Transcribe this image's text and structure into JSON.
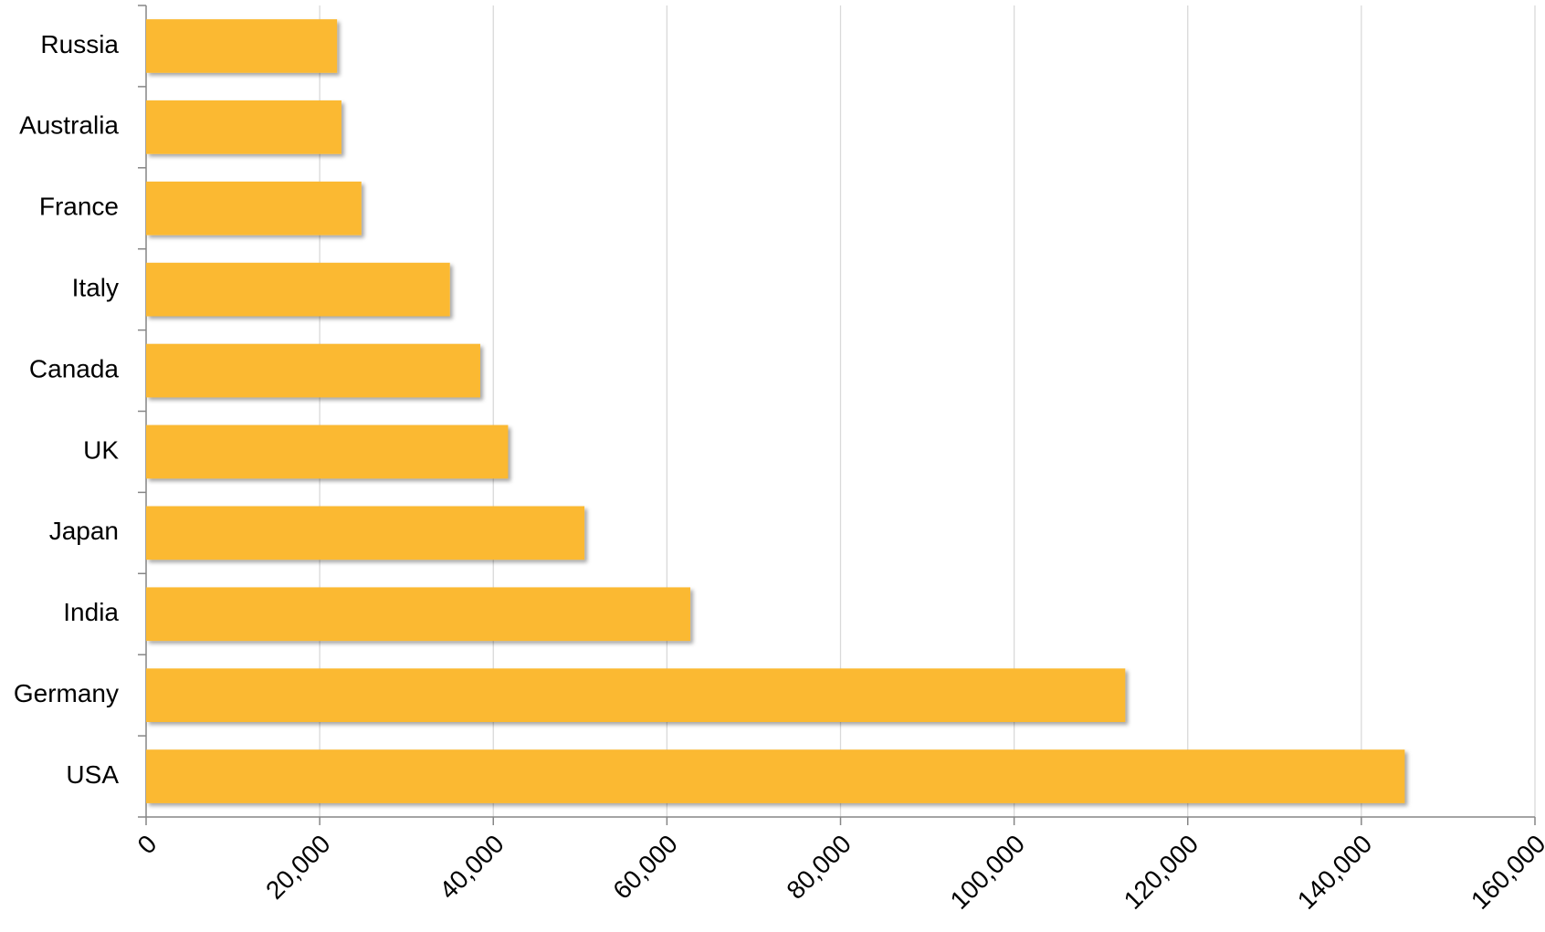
{
  "chart_data": {
    "type": "bar",
    "orientation": "horizontal",
    "categories": [
      "Russia",
      "Australia",
      "France",
      "Italy",
      "Canada",
      "UK",
      "Japan",
      "India",
      "Germany",
      "USA"
    ],
    "values": [
      22000,
      22500,
      24800,
      35000,
      38500,
      41700,
      50500,
      62700,
      112800,
      145000
    ],
    "color": "#fbb931",
    "xlim": [
      0,
      160000
    ],
    "xticks": [
      0,
      {
        "value": 20000,
        "label": "20,000"
      },
      {
        "value": 40000,
        "label": "40,000"
      },
      {
        "value": 60000,
        "label": "60,000"
      },
      {
        "value": 80000,
        "label": "80,000"
      },
      {
        "value": 100000,
        "label": "100,000"
      },
      {
        "value": 120000,
        "label": "120,000"
      },
      {
        "value": 140000,
        "label": "140,000"
      },
      {
        "value": 160000,
        "label": "160,000"
      }
    ],
    "grid": true
  }
}
